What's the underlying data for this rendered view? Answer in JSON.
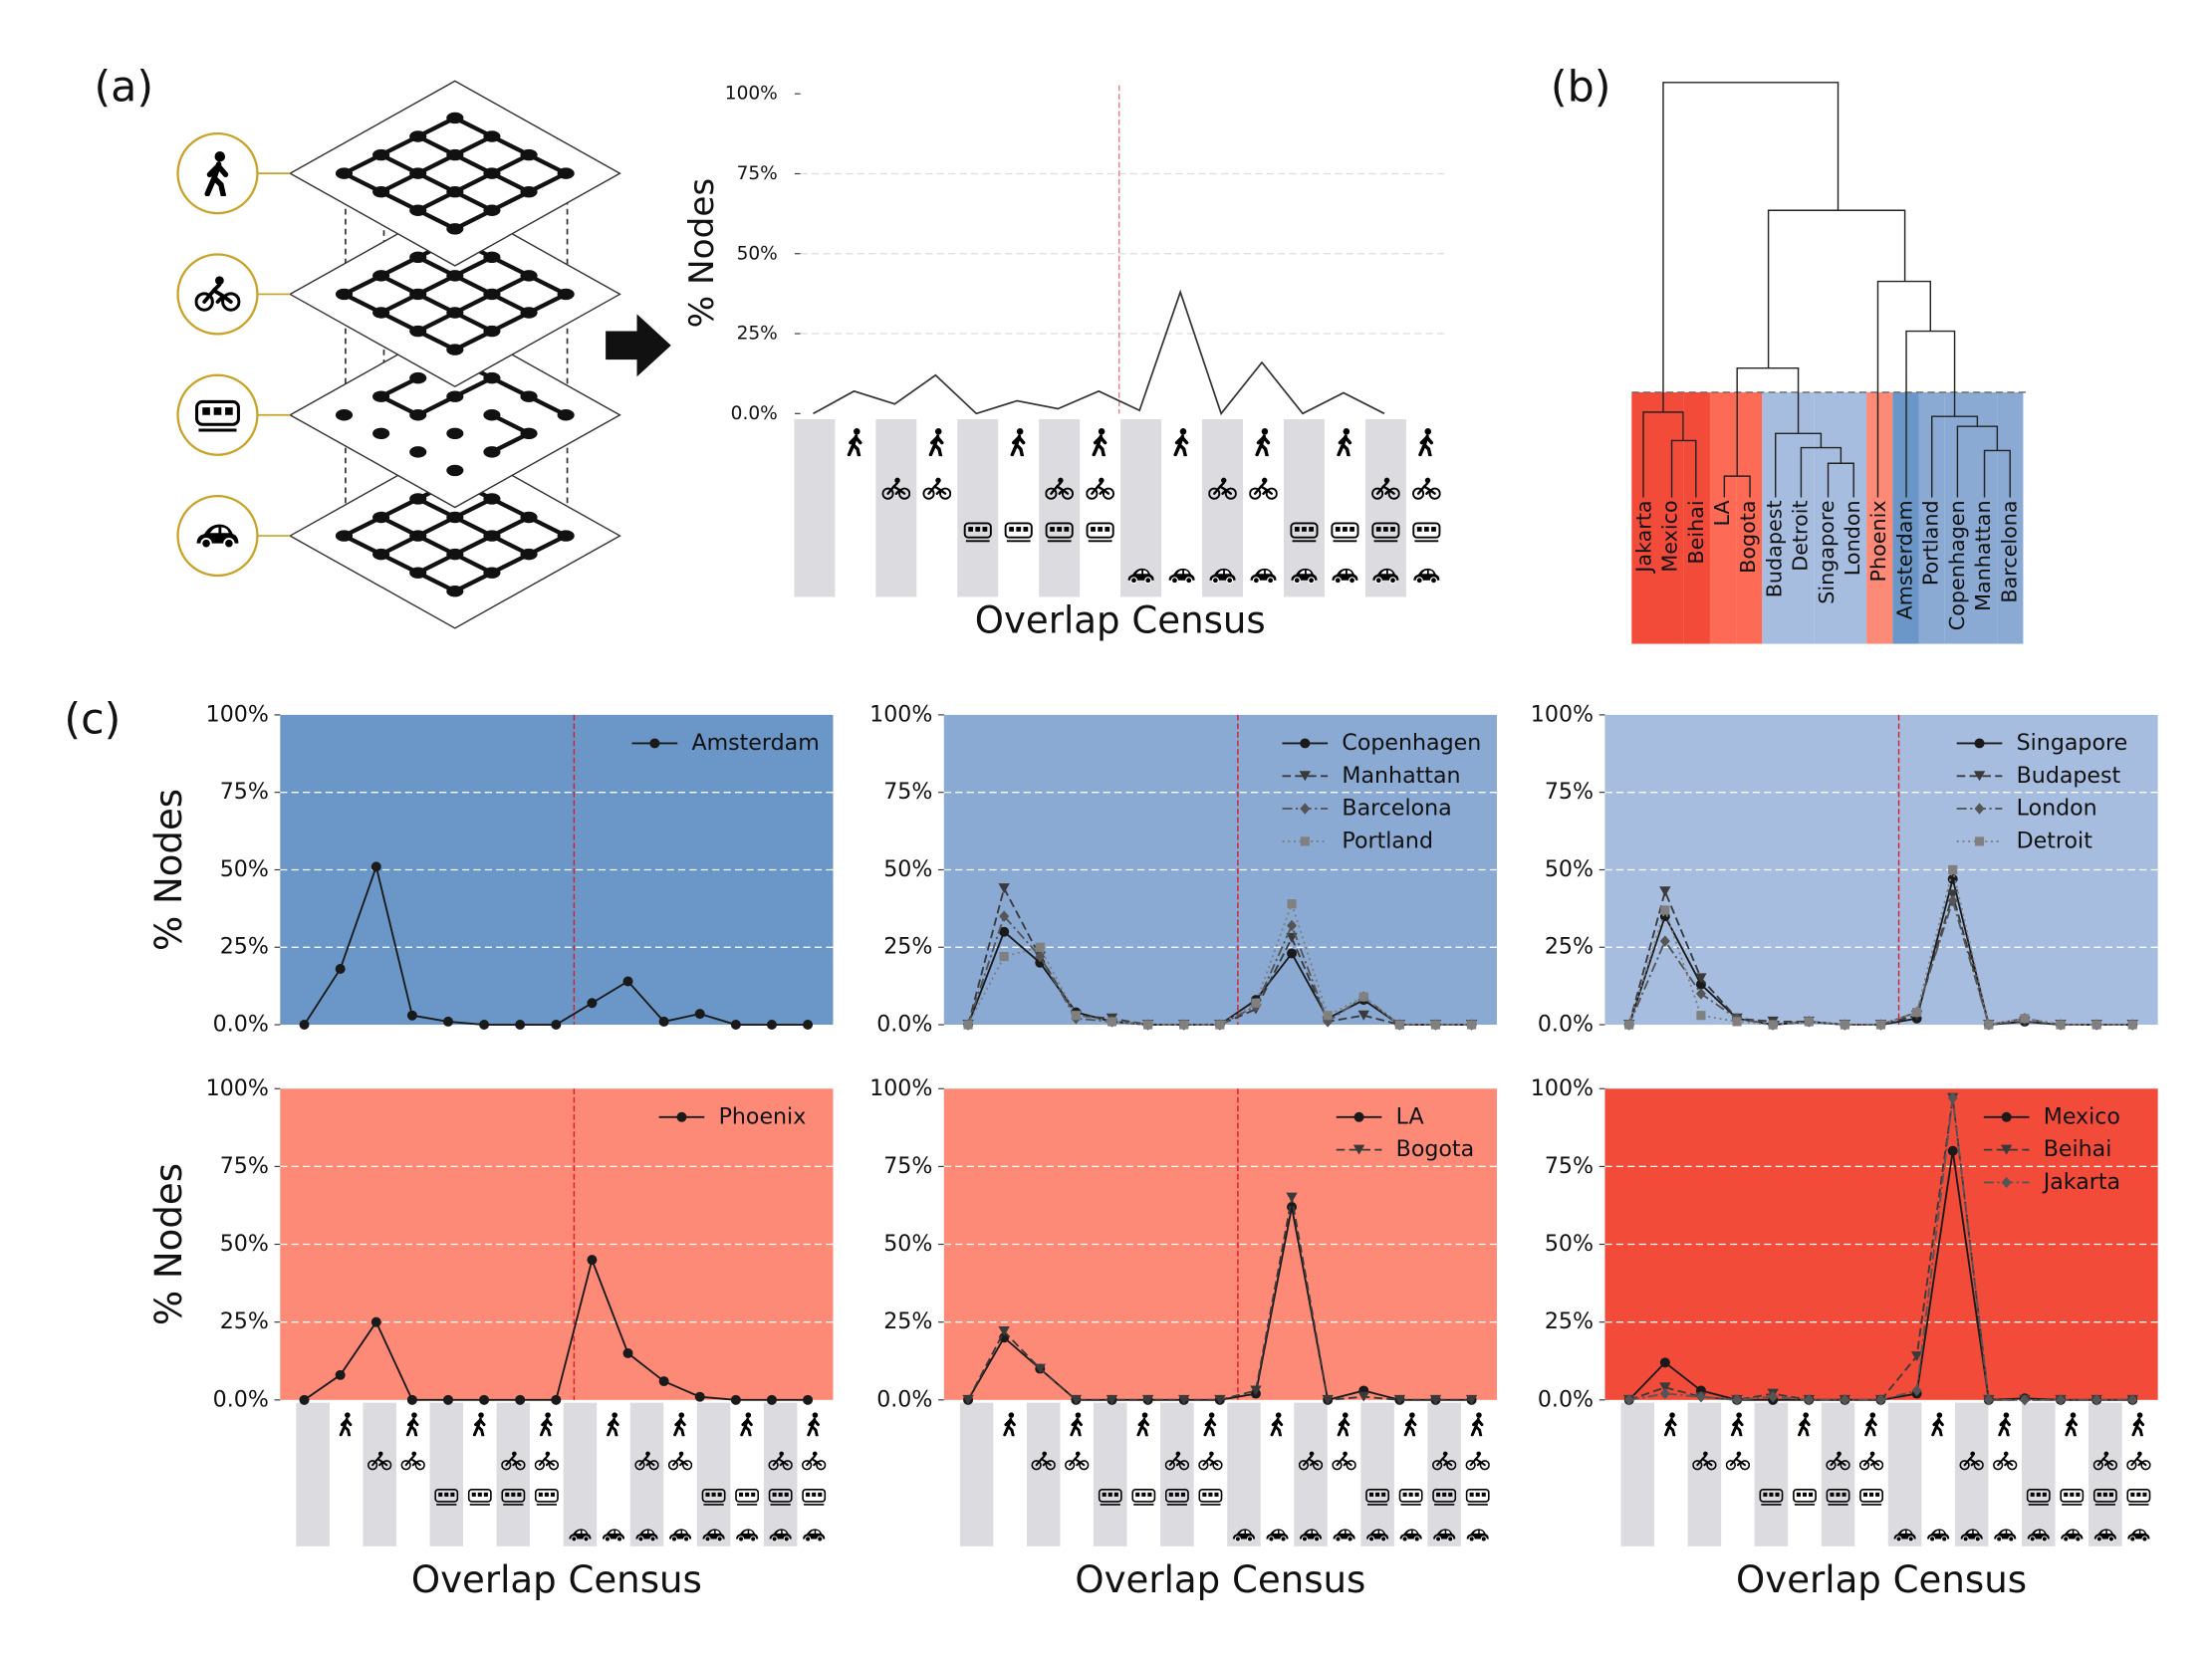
{
  "chart_data": [
    {
      "type": "line",
      "panel_label": "(a)",
      "ylabel": "% Nodes",
      "xlabel": "Overlap Census",
      "ylim": [
        0,
        100
      ],
      "yticks": [
        {
          "value": 0,
          "label": "0.0%"
        },
        {
          "value": 25,
          "label": "25%"
        },
        {
          "value": 50,
          "label": "50%"
        },
        {
          "value": 75,
          "label": "75%"
        },
        {
          "value": 100,
          "label": "100%"
        }
      ],
      "values": [
        0,
        7,
        3,
        12,
        0,
        4,
        1.5,
        7,
        1,
        38,
        0,
        16,
        0,
        6.5,
        0
      ],
      "color": "#333333",
      "vline": 7.5,
      "grid": true
    },
    {
      "type": "dendrogram",
      "panel_label": "(b)",
      "leaves": [
        "Jakarta",
        "Mexico",
        "Beihai",
        "LA",
        "Bogota",
        "Budapest",
        "Detroit",
        "Singapore",
        "London",
        "Phoenix",
        "Amsterdam",
        "Portland",
        "Copenhagen",
        "Manhattan",
        "Barcelona"
      ],
      "leaf_colors": [
        "#f24b3a",
        "#f24b3a",
        "#f24b3a",
        "#fd6a55",
        "#fd6a55",
        "#a7bde0",
        "#a7bde0",
        "#a7bde0",
        "#a7bde0",
        "#fd8a76",
        "#6a96c8",
        "#8aaad4",
        "#8aaad4",
        "#8aaad4",
        "#8aaad4"
      ]
    },
    {
      "type": "line",
      "panel_label": "(c)",
      "ylabel": "% Nodes",
      "ylim": [
        0,
        100
      ],
      "yticks": [
        {
          "value": 0,
          "label": "0.0%"
        },
        {
          "value": 25,
          "label": "25%"
        },
        {
          "value": 50,
          "label": "50%"
        },
        {
          "value": 75,
          "label": "75%"
        },
        {
          "value": 100,
          "label": "100%"
        }
      ],
      "background": "#6a96c8",
      "vline": 7.5,
      "grid": true,
      "series": [
        {
          "name": "Amsterdam",
          "color": "#1a1a1a",
          "marker": "circle",
          "linestyle": "solid",
          "values": [
            0,
            18,
            51,
            3,
            1,
            0,
            0,
            0,
            7,
            14,
            1,
            3.5,
            0,
            0,
            0
          ]
        }
      ]
    },
    {
      "type": "line",
      "ylim": [
        0,
        100
      ],
      "yticks": [
        {
          "value": 0,
          "label": "0.0%"
        },
        {
          "value": 25,
          "label": "25%"
        },
        {
          "value": 50,
          "label": "50%"
        },
        {
          "value": 75,
          "label": "75%"
        },
        {
          "value": 100,
          "label": "100%"
        }
      ],
      "background": "#8aaad4",
      "vline": 7.5,
      "grid": true,
      "series": [
        {
          "name": "Copenhagen",
          "color": "#1a1a1a",
          "marker": "circle",
          "linestyle": "solid",
          "values": [
            0,
            30,
            20,
            4,
            1,
            0,
            0,
            0,
            8,
            23,
            2,
            8,
            0,
            0,
            0
          ]
        },
        {
          "name": "Manhattan",
          "color": "#3a3a3a",
          "marker": "triangle",
          "linestyle": "dashed",
          "values": [
            0,
            44,
            22,
            3,
            2,
            0,
            0,
            0,
            5,
            28,
            1,
            3,
            0,
            0,
            0
          ]
        },
        {
          "name": "Barcelona",
          "color": "#555555",
          "marker": "diamond",
          "linestyle": "dashdot",
          "values": [
            0,
            35,
            22,
            2,
            1,
            0,
            0,
            0,
            6,
            32,
            1,
            9,
            0,
            0,
            0
          ]
        },
        {
          "name": "Portland",
          "color": "#808080",
          "marker": "square",
          "linestyle": "dotted",
          "values": [
            0,
            22,
            25,
            3,
            1,
            0,
            0,
            0,
            7,
            39,
            3,
            9,
            0,
            0,
            0
          ]
        }
      ]
    },
    {
      "type": "line",
      "ylim": [
        0,
        100
      ],
      "yticks": [
        {
          "value": 0,
          "label": "0.0%"
        },
        {
          "value": 25,
          "label": "25%"
        },
        {
          "value": 50,
          "label": "50%"
        },
        {
          "value": 75,
          "label": "75%"
        },
        {
          "value": 100,
          "label": "100%"
        }
      ],
      "background": "#a7bde0",
      "vline": 7.5,
      "grid": true,
      "series": [
        {
          "name": "Singapore",
          "color": "#1a1a1a",
          "marker": "circle",
          "linestyle": "solid",
          "values": [
            0,
            35,
            13,
            2,
            0,
            1,
            0,
            0,
            2,
            47,
            0,
            1,
            0,
            0,
            0
          ]
        },
        {
          "name": "Budapest",
          "color": "#3a3a3a",
          "marker": "triangle",
          "linestyle": "dashed",
          "values": [
            0,
            43,
            15,
            2,
            1,
            1,
            0,
            0,
            3,
            42,
            0,
            1,
            0,
            0,
            0
          ]
        },
        {
          "name": "London",
          "color": "#555555",
          "marker": "diamond",
          "linestyle": "dashdot",
          "values": [
            0,
            27,
            10,
            2,
            0,
            1,
            0,
            0,
            4,
            40,
            0,
            2,
            0,
            0,
            0
          ]
        },
        {
          "name": "Detroit",
          "color": "#808080",
          "marker": "square",
          "linestyle": "dotted",
          "values": [
            0,
            37,
            3,
            1,
            0,
            1,
            0,
            0,
            4,
            50,
            0,
            2,
            0,
            0,
            0
          ]
        }
      ]
    },
    {
      "type": "line",
      "ylabel": "% Nodes",
      "xlabel": "Overlap Census",
      "ylim": [
        0,
        100
      ],
      "yticks": [
        {
          "value": 0,
          "label": "0.0%"
        },
        {
          "value": 25,
          "label": "25%"
        },
        {
          "value": 50,
          "label": "50%"
        },
        {
          "value": 75,
          "label": "75%"
        },
        {
          "value": 100,
          "label": "100%"
        }
      ],
      "background": "#fd8a76",
      "vline": 7.5,
      "grid": true,
      "series": [
        {
          "name": "Phoenix",
          "color": "#1a1a1a",
          "marker": "circle",
          "linestyle": "solid",
          "values": [
            0,
            8,
            25,
            0,
            0,
            0,
            0,
            0,
            45,
            15,
            6,
            1,
            0,
            0,
            0
          ]
        }
      ]
    },
    {
      "type": "line",
      "xlabel": "Overlap Census",
      "ylim": [
        0,
        100
      ],
      "yticks": [
        {
          "value": 0,
          "label": "0.0%"
        },
        {
          "value": 25,
          "label": "25%"
        },
        {
          "value": 50,
          "label": "50%"
        },
        {
          "value": 75,
          "label": "75%"
        },
        {
          "value": 100,
          "label": "100%"
        }
      ],
      "background": "#fd8a76",
      "vline": 7.5,
      "grid": true,
      "series": [
        {
          "name": "LA",
          "color": "#1a1a1a",
          "marker": "circle",
          "linestyle": "solid",
          "values": [
            0,
            20,
            10,
            0,
            0,
            0,
            0,
            0,
            2,
            62,
            0,
            3,
            0,
            0,
            0
          ]
        },
        {
          "name": "Bogota",
          "color": "#3a3a3a",
          "marker": "triangle",
          "linestyle": "dashed",
          "values": [
            0,
            22,
            10,
            0,
            0,
            0,
            0,
            0,
            3,
            65,
            0,
            1,
            0,
            0,
            0
          ]
        }
      ]
    },
    {
      "type": "line",
      "xlabel": "Overlap Census",
      "ylim": [
        0,
        100
      ],
      "yticks": [
        {
          "value": 0,
          "label": "0.0%"
        },
        {
          "value": 25,
          "label": "25%"
        },
        {
          "value": 50,
          "label": "50%"
        },
        {
          "value": 75,
          "label": "75%"
        },
        {
          "value": 100,
          "label": "100%"
        }
      ],
      "background": "#f24b3a",
      "grid": true,
      "series": [
        {
          "name": "Mexico",
          "color": "#1a1a1a",
          "marker": "circle",
          "linestyle": "solid",
          "values": [
            0,
            12,
            3,
            0,
            0,
            0,
            0,
            0,
            2,
            80,
            0,
            0.5,
            0,
            0,
            0
          ]
        },
        {
          "name": "Beihai",
          "color": "#3a3a3a",
          "marker": "triangle",
          "linestyle": "dashed",
          "values": [
            0,
            4,
            1,
            0,
            2,
            0,
            0,
            0,
            14,
            97,
            0,
            0,
            0,
            0,
            0
          ]
        },
        {
          "name": "Jakarta",
          "color": "#555555",
          "marker": "diamond",
          "linestyle": "dashdot",
          "values": [
            0,
            2,
            1,
            0,
            1,
            0,
            0,
            0,
            3,
            97,
            0,
            0,
            0,
            0,
            0
          ]
        }
      ]
    }
  ]
}
